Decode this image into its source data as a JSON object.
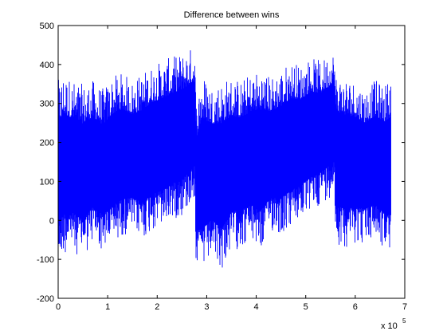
{
  "chart_data": {
    "type": "line",
    "title": "Difference between wins",
    "xlabel": "",
    "ylabel": "",
    "x_multiplier_label": {
      "base": "x 10",
      "exponent": "5"
    },
    "xlim": [
      0,
      7
    ],
    "ylim": [
      -200,
      500
    ],
    "x_ticks": [
      "0",
      "1",
      "2",
      "3",
      "4",
      "5",
      "6",
      "7"
    ],
    "y_ticks": [
      "-200",
      "-100",
      "0",
      "100",
      "200",
      "300",
      "400",
      "500"
    ],
    "grid": false,
    "series": [
      {
        "color": "#0000ff",
        "description_points": [
          {
            "x": 0.0,
            "min": -130,
            "max": 360
          },
          {
            "x": 0.1,
            "min": -90,
            "max": 380
          },
          {
            "x": 0.3,
            "min": -80,
            "max": 360
          },
          {
            "x": 0.5,
            "min": -100,
            "max": 350
          },
          {
            "x": 0.7,
            "min": -60,
            "max": 360
          },
          {
            "x": 0.9,
            "min": -80,
            "max": 340
          },
          {
            "x": 1.1,
            "min": -60,
            "max": 370
          },
          {
            "x": 1.3,
            "min": -40,
            "max": 380
          },
          {
            "x": 1.5,
            "min": -30,
            "max": 360
          },
          {
            "x": 1.7,
            "min": -50,
            "max": 380
          },
          {
            "x": 1.9,
            "min": -30,
            "max": 400
          },
          {
            "x": 2.1,
            "min": -20,
            "max": 410
          },
          {
            "x": 2.3,
            "min": 0,
            "max": 420
          },
          {
            "x": 2.5,
            "min": 10,
            "max": 430
          },
          {
            "x": 2.7,
            "min": 40,
            "max": 445
          },
          {
            "x": 2.77,
            "min": 60,
            "max": 440
          },
          {
            "x": 2.78,
            "min": -120,
            "max": 300
          },
          {
            "x": 2.9,
            "min": -140,
            "max": 380
          },
          {
            "x": 3.1,
            "min": -100,
            "max": 350
          },
          {
            "x": 3.3,
            "min": -130,
            "max": 360
          },
          {
            "x": 3.5,
            "min": -80,
            "max": 370
          },
          {
            "x": 3.7,
            "min": -70,
            "max": 360
          },
          {
            "x": 3.9,
            "min": -60,
            "max": 380
          },
          {
            "x": 4.1,
            "min": -80,
            "max": 390
          },
          {
            "x": 4.3,
            "min": -30,
            "max": 370
          },
          {
            "x": 4.5,
            "min": -40,
            "max": 390
          },
          {
            "x": 4.7,
            "min": -20,
            "max": 410
          },
          {
            "x": 4.9,
            "min": 0,
            "max": 400
          },
          {
            "x": 5.1,
            "min": 20,
            "max": 420
          },
          {
            "x": 5.3,
            "min": 40,
            "max": 410
          },
          {
            "x": 5.5,
            "min": 60,
            "max": 430
          },
          {
            "x": 5.58,
            "min": 80,
            "max": 440
          },
          {
            "x": 5.6,
            "min": -60,
            "max": 380
          },
          {
            "x": 5.8,
            "min": -70,
            "max": 370
          },
          {
            "x": 6.0,
            "min": -60,
            "max": 360
          },
          {
            "x": 6.2,
            "min": -60,
            "max": 340
          },
          {
            "x": 6.4,
            "min": -50,
            "max": 360
          },
          {
            "x": 6.6,
            "min": -80,
            "max": 350
          },
          {
            "x": 6.72,
            "min": -90,
            "max": 370
          }
        ],
        "x_end": 6.72
      }
    ]
  }
}
